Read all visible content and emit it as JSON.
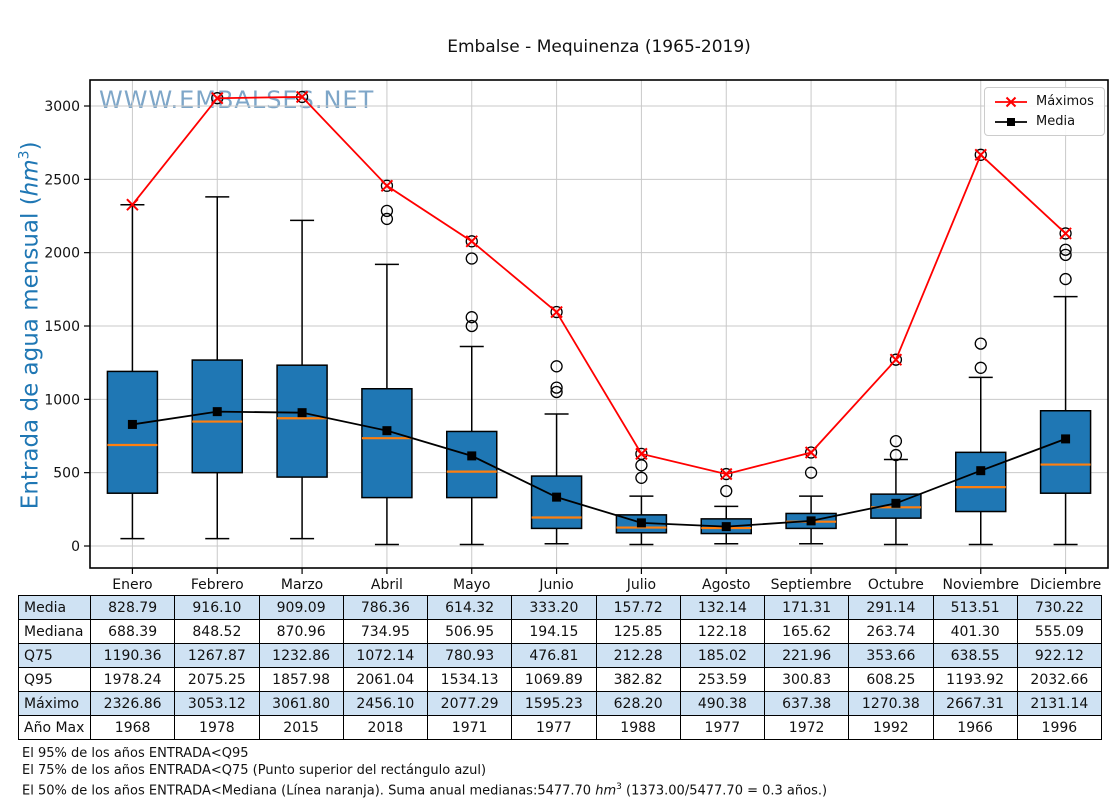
{
  "title": "Embalse - Mequinenza (1965-2019)",
  "watermark": "WWW.EMBALSES.NET",
  "colors": {
    "box_fill": "#1f77b4",
    "median_line": "#ff7f0e",
    "max_line": "#ff0000",
    "mean_line": "#000000",
    "grid": "#c9c9c9",
    "spine": "#000000",
    "ylabel_text": "#1f77b4",
    "watermark_text": "#7ea6c8",
    "table_stripe": "#cfe2f3"
  },
  "y_axis": {
    "label_prefix": "Entrada de agua mensual (",
    "label_unit": "hm",
    "label_exponent": "3",
    "label_suffix": ")",
    "ticks": [
      0,
      500,
      1000,
      1500,
      2000,
      2500,
      3000
    ]
  },
  "legend": {
    "maximos_label": "Máximos",
    "media_label": "Media"
  },
  "chart_data": {
    "type": "boxplot-with-lines",
    "title": "Embalse - Mequinenza (1965-2019)",
    "ylabel": "Entrada de agua mensual (hm³)",
    "ylim": [
      -150,
      3180
    ],
    "grid": true,
    "legend_position": "upper right",
    "categories": [
      "Enero",
      "Febrero",
      "Marzo",
      "Abril",
      "Mayo",
      "Junio",
      "Julio",
      "Agosto",
      "Septiembre",
      "Octubre",
      "Noviembre",
      "Diciembre"
    ],
    "series": [
      {
        "name": "Máximos",
        "type": "line",
        "marker": "x",
        "color": "red",
        "values": [
          2326.86,
          3053.12,
          3061.8,
          2456.1,
          2077.29,
          1595.23,
          628.2,
          490.38,
          637.38,
          1270.38,
          2667.31,
          2131.14
        ]
      },
      {
        "name": "Media",
        "type": "line",
        "marker": "square",
        "color": "black",
        "values": [
          828.79,
          916.1,
          909.09,
          786.36,
          614.32,
          333.2,
          157.72,
          132.14,
          171.31,
          291.14,
          513.51,
          730.22
        ]
      }
    ],
    "boxes": {
      "median": [
        688.39,
        848.52,
        870.96,
        734.95,
        506.95,
        194.15,
        125.85,
        122.18,
        165.62,
        263.74,
        401.3,
        555.09
      ],
      "q75": [
        1190.36,
        1267.87,
        1232.86,
        1072.14,
        780.93,
        476.81,
        212.28,
        185.02,
        221.96,
        353.66,
        638.55,
        922.12
      ],
      "q25_estimated": [
        360,
        500,
        470,
        330,
        330,
        120,
        90,
        85,
        120,
        190,
        235,
        360
      ],
      "whisker_low_estimated": [
        50,
        50,
        50,
        10,
        10,
        15,
        10,
        15,
        15,
        10,
        10,
        10
      ],
      "whisker_high_estimated": [
        2326.86,
        2380,
        2220,
        1920,
        1360,
        900,
        340,
        270,
        340,
        590,
        1150,
        1700
      ],
      "outliers_estimated": [
        [],
        [
          3053.12
        ],
        [
          3061.8
        ],
        [
          2456.1,
          2285,
          2230
        ],
        [
          2077.29,
          1960,
          1560,
          1500
        ],
        [
          1595.23,
          1225,
          1080,
          1050
        ],
        [
          628.2,
          550,
          465
        ],
        [
          490.38,
          375
        ],
        [
          637.38,
          500
        ],
        [
          1270.38,
          715,
          620
        ],
        [
          2667.31,
          1380,
          1215
        ],
        [
          2131.14,
          2020,
          1985,
          1820
        ]
      ]
    }
  },
  "table": {
    "columns": [
      "Enero",
      "Febrero",
      "Marzo",
      "Abril",
      "Mayo",
      "Junio",
      "Julio",
      "Agosto",
      "Septiembre",
      "Octubre",
      "Noviembre",
      "Diciembre"
    ],
    "rows": [
      {
        "label": "Media",
        "values": [
          "828.79",
          "916.10",
          "909.09",
          "786.36",
          "614.32",
          "333.20",
          "157.72",
          "132.14",
          "171.31",
          "291.14",
          "513.51",
          "730.22"
        ]
      },
      {
        "label": "Mediana",
        "values": [
          "688.39",
          "848.52",
          "870.96",
          "734.95",
          "506.95",
          "194.15",
          "125.85",
          "122.18",
          "165.62",
          "263.74",
          "401.30",
          "555.09"
        ]
      },
      {
        "label": "Q75",
        "values": [
          "1190.36",
          "1267.87",
          "1232.86",
          "1072.14",
          "780.93",
          "476.81",
          "212.28",
          "185.02",
          "221.96",
          "353.66",
          "638.55",
          "922.12"
        ]
      },
      {
        "label": "Q95",
        "values": [
          "1978.24",
          "2075.25",
          "1857.98",
          "2061.04",
          "1534.13",
          "1069.89",
          "382.82",
          "253.59",
          "300.83",
          "608.25",
          "1193.92",
          "2032.66"
        ]
      },
      {
        "label": "Máximo",
        "values": [
          "2326.86",
          "3053.12",
          "3061.80",
          "2456.10",
          "2077.29",
          "1595.23",
          "628.20",
          "490.38",
          "637.38",
          "1270.38",
          "2667.31",
          "2131.14"
        ]
      },
      {
        "label": "Año Max",
        "values": [
          "1968",
          "1978",
          "2015",
          "2018",
          "1971",
          "1977",
          "1988",
          "1977",
          "1972",
          "1992",
          "1966",
          "1996"
        ]
      }
    ]
  },
  "notes": {
    "q95": "El 95% de los años ENTRADA<Q95",
    "q75": "El 75% de los años ENTRADA<Q75 (Punto superior del rectángulo azul)",
    "mediana_prefix": "El 50% de los años ENTRADA<Mediana (Línea naranja). Suma anual medianas:5477.70 ",
    "unit": "hm",
    "exponent": "3",
    "mediana_suffix": " (1373.00/5477.70 = 0.3 años.)"
  }
}
